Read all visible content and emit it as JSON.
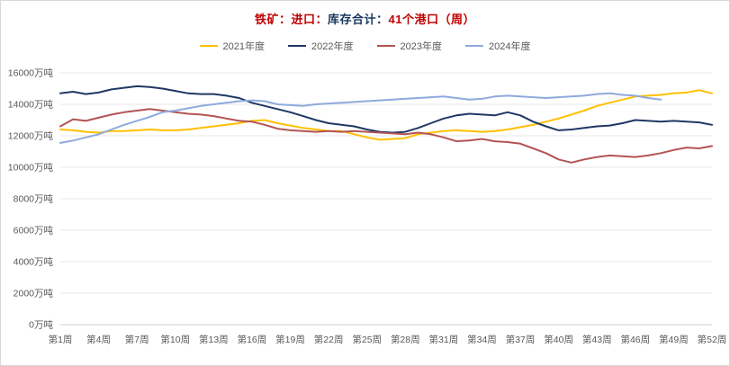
{
  "title": {
    "segments": [
      {
        "text": "铁矿：进口：",
        "color": "#c00000"
      },
      {
        "text": "库存合计：",
        "color": "#17375e"
      },
      {
        "text": "41个港口（周）",
        "color": "#c00000"
      }
    ]
  },
  "colors": {
    "grid": "#e7e7e7",
    "zero_line": "#d0d0d0",
    "tick_text": "#595959",
    "legend_text": "#595959"
  },
  "chart_data": {
    "type": "line",
    "title": "铁矿：进口：库存合计：41个港口（周）",
    "xlabel": "",
    "ylabel": "",
    "unit": "万吨",
    "x_count": 52,
    "ylim": [
      0,
      16000
    ],
    "grid": true,
    "legend_position": "top-center",
    "y_ticks": [
      {
        "value": 0,
        "label": "0万吨"
      },
      {
        "value": 2000,
        "label": "2000万吨"
      },
      {
        "value": 4000,
        "label": "4000万吨"
      },
      {
        "value": 6000,
        "label": "6000万吨"
      },
      {
        "value": 8000,
        "label": "8000万吨"
      },
      {
        "value": 10000,
        "label": "10000万吨"
      },
      {
        "value": 12000,
        "label": "12000万吨"
      },
      {
        "value": 14000,
        "label": "14000万吨"
      },
      {
        "value": 16000,
        "label": "16000万吨"
      }
    ],
    "x_ticks": [
      {
        "week": 1,
        "label": "第1周"
      },
      {
        "week": 4,
        "label": "第4周"
      },
      {
        "week": 7,
        "label": "第7周"
      },
      {
        "week": 10,
        "label": "第10周"
      },
      {
        "week": 13,
        "label": "第13周"
      },
      {
        "week": 16,
        "label": "第16周"
      },
      {
        "week": 19,
        "label": "第19周"
      },
      {
        "week": 22,
        "label": "第22周"
      },
      {
        "week": 25,
        "label": "第25周"
      },
      {
        "week": 28,
        "label": "第28周"
      },
      {
        "week": 31,
        "label": "第31周"
      },
      {
        "week": 34,
        "label": "第34周"
      },
      {
        "week": 37,
        "label": "第37周"
      },
      {
        "week": 40,
        "label": "第40周"
      },
      {
        "week": 43,
        "label": "第43周"
      },
      {
        "week": 46,
        "label": "第46周"
      },
      {
        "week": 49,
        "label": "第49周"
      },
      {
        "week": 52,
        "label": "第52周"
      }
    ],
    "series": [
      {
        "name": "2021年度",
        "color": "#ffc000",
        "values": [
          12400,
          12350,
          12250,
          12200,
          12300,
          12300,
          12350,
          12400,
          12350,
          12350,
          12400,
          12500,
          12600,
          12700,
          12800,
          12950,
          13000,
          12800,
          12650,
          12500,
          12400,
          12300,
          12300,
          12100,
          11900,
          11750,
          11800,
          11850,
          12100,
          12200,
          12300,
          12350,
          12300,
          12250,
          12300,
          12400,
          12550,
          12700,
          12900,
          13100,
          13350,
          13600,
          13900,
          14100,
          14300,
          14500,
          14550,
          14600,
          14700,
          14750,
          14900,
          14700
        ]
      },
      {
        "name": "2022年度",
        "color": "#1f3864",
        "values": [
          14700,
          14800,
          14650,
          14750,
          14950,
          15050,
          15150,
          15100,
          15000,
          14850,
          14700,
          14650,
          14650,
          14550,
          14400,
          14100,
          13900,
          13700,
          13500,
          13250,
          13000,
          12800,
          12700,
          12600,
          12400,
          12250,
          12200,
          12250,
          12500,
          12800,
          13100,
          13300,
          13400,
          13350,
          13300,
          13500,
          13300,
          12900,
          12600,
          12350,
          12400,
          12500,
          12600,
          12650,
          12800,
          13000,
          12950,
          12900,
          12950,
          12900,
          12850,
          12700
        ]
      },
      {
        "name": "2023年度",
        "color": "#b35454",
        "values": [
          12600,
          13050,
          12950,
          13150,
          13350,
          13500,
          13600,
          13700,
          13600,
          13500,
          13400,
          13350,
          13250,
          13100,
          12950,
          12900,
          12700,
          12450,
          12350,
          12300,
          12250,
          12300,
          12250,
          12300,
          12250,
          12200,
          12150,
          12100,
          12200,
          12100,
          11900,
          11650,
          11700,
          11800,
          11650,
          11600,
          11500,
          11200,
          10900,
          10500,
          10300,
          10500,
          10650,
          10750,
          10700,
          10650,
          10750,
          10900,
          11100,
          11250,
          11200,
          11350
        ]
      },
      {
        "name": "2024年度",
        "color": "#8faadc",
        "values": [
          11550,
          11700,
          11900,
          12100,
          12400,
          12700,
          12950,
          13200,
          13500,
          13600,
          13750,
          13900,
          14000,
          14100,
          14200,
          14250,
          14200,
          14000,
          13950,
          13900,
          14000,
          14050,
          14100,
          14150,
          14200,
          14250,
          14300,
          14350,
          14400,
          14450,
          14500,
          14400,
          14300,
          14350,
          14500,
          14550,
          14500,
          14450,
          14400,
          14450,
          14500,
          14550,
          14650,
          14700,
          14600,
          14550,
          14400,
          14300,
          null,
          null,
          null,
          null
        ]
      }
    ]
  }
}
